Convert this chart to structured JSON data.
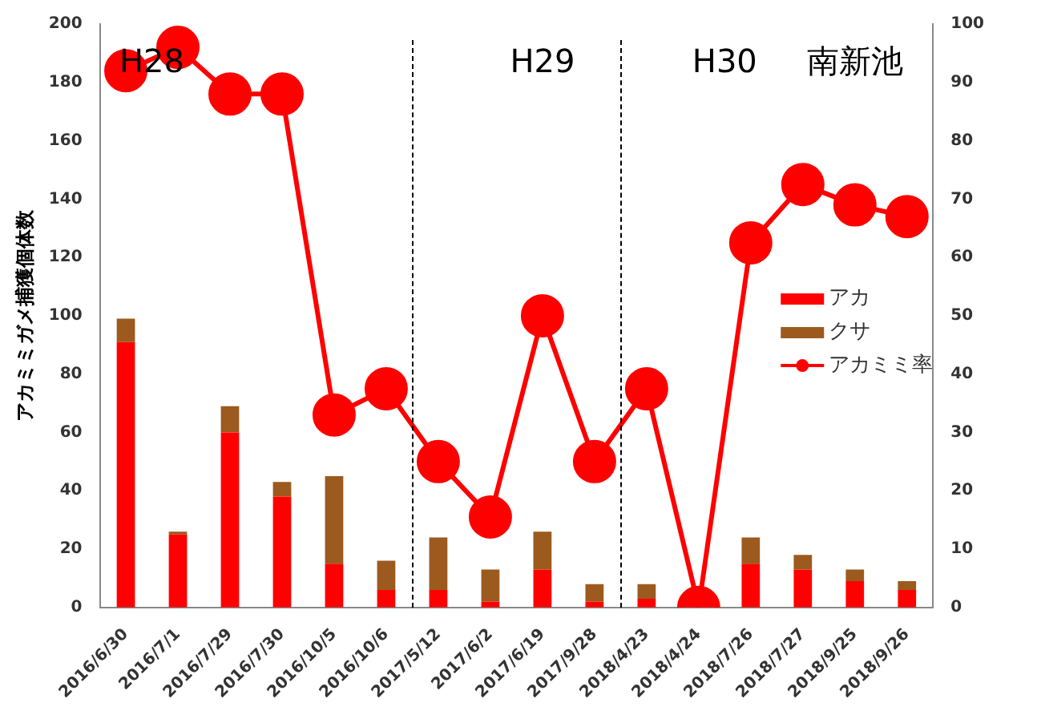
{
  "chart_data": {
    "type": "bar",
    "ylabel": "アカミミガメ捕獲個体数",
    "categories": [
      "2016/6/30",
      "2016/7/1",
      "2016/7/29",
      "2016/7/30",
      "2016/10/5",
      "2016/10/6",
      "2017/5/12",
      "2017/6/2",
      "2017/6/19",
      "2017/9/28",
      "2018/4/23",
      "2018/4/24",
      "2018/7/26",
      "2018/7/27",
      "2018/9/25",
      "2018/9/26"
    ],
    "stacked": true,
    "ylim": [
      0,
      200
    ],
    "yticks": [
      0,
      20,
      40,
      60,
      80,
      100,
      120,
      140,
      160,
      180,
      200
    ],
    "y2lim": [
      0,
      100
    ],
    "y2ticks": [
      0,
      10,
      20,
      30,
      40,
      50,
      60,
      70,
      80,
      90,
      100
    ],
    "series": [
      {
        "name": "アカ",
        "color": "#ff0000",
        "values": [
          91,
          25,
          60,
          38,
          15,
          6,
          6,
          2,
          13,
          2,
          3,
          0,
          15,
          13,
          9,
          6
        ]
      },
      {
        "name": "クサ",
        "color": "#9c5a1e",
        "values": [
          8,
          1,
          9,
          5,
          30,
          10,
          18,
          11,
          13,
          6,
          5,
          0,
          9,
          5,
          4,
          3
        ]
      },
      {
        "name": "アカミミ率",
        "type": "line",
        "axis": "y2",
        "color": "#ff0000",
        "values": [
          92,
          96,
          88,
          88,
          33,
          37.5,
          25,
          15.5,
          50,
          25,
          37.5,
          0,
          62.5,
          72.5,
          69,
          67
        ]
      }
    ],
    "marker": "circle",
    "line_style": "solid",
    "grid": false,
    "legend": "right",
    "annotations": [
      "H28",
      "H29",
      "H30",
      "南新池"
    ]
  }
}
